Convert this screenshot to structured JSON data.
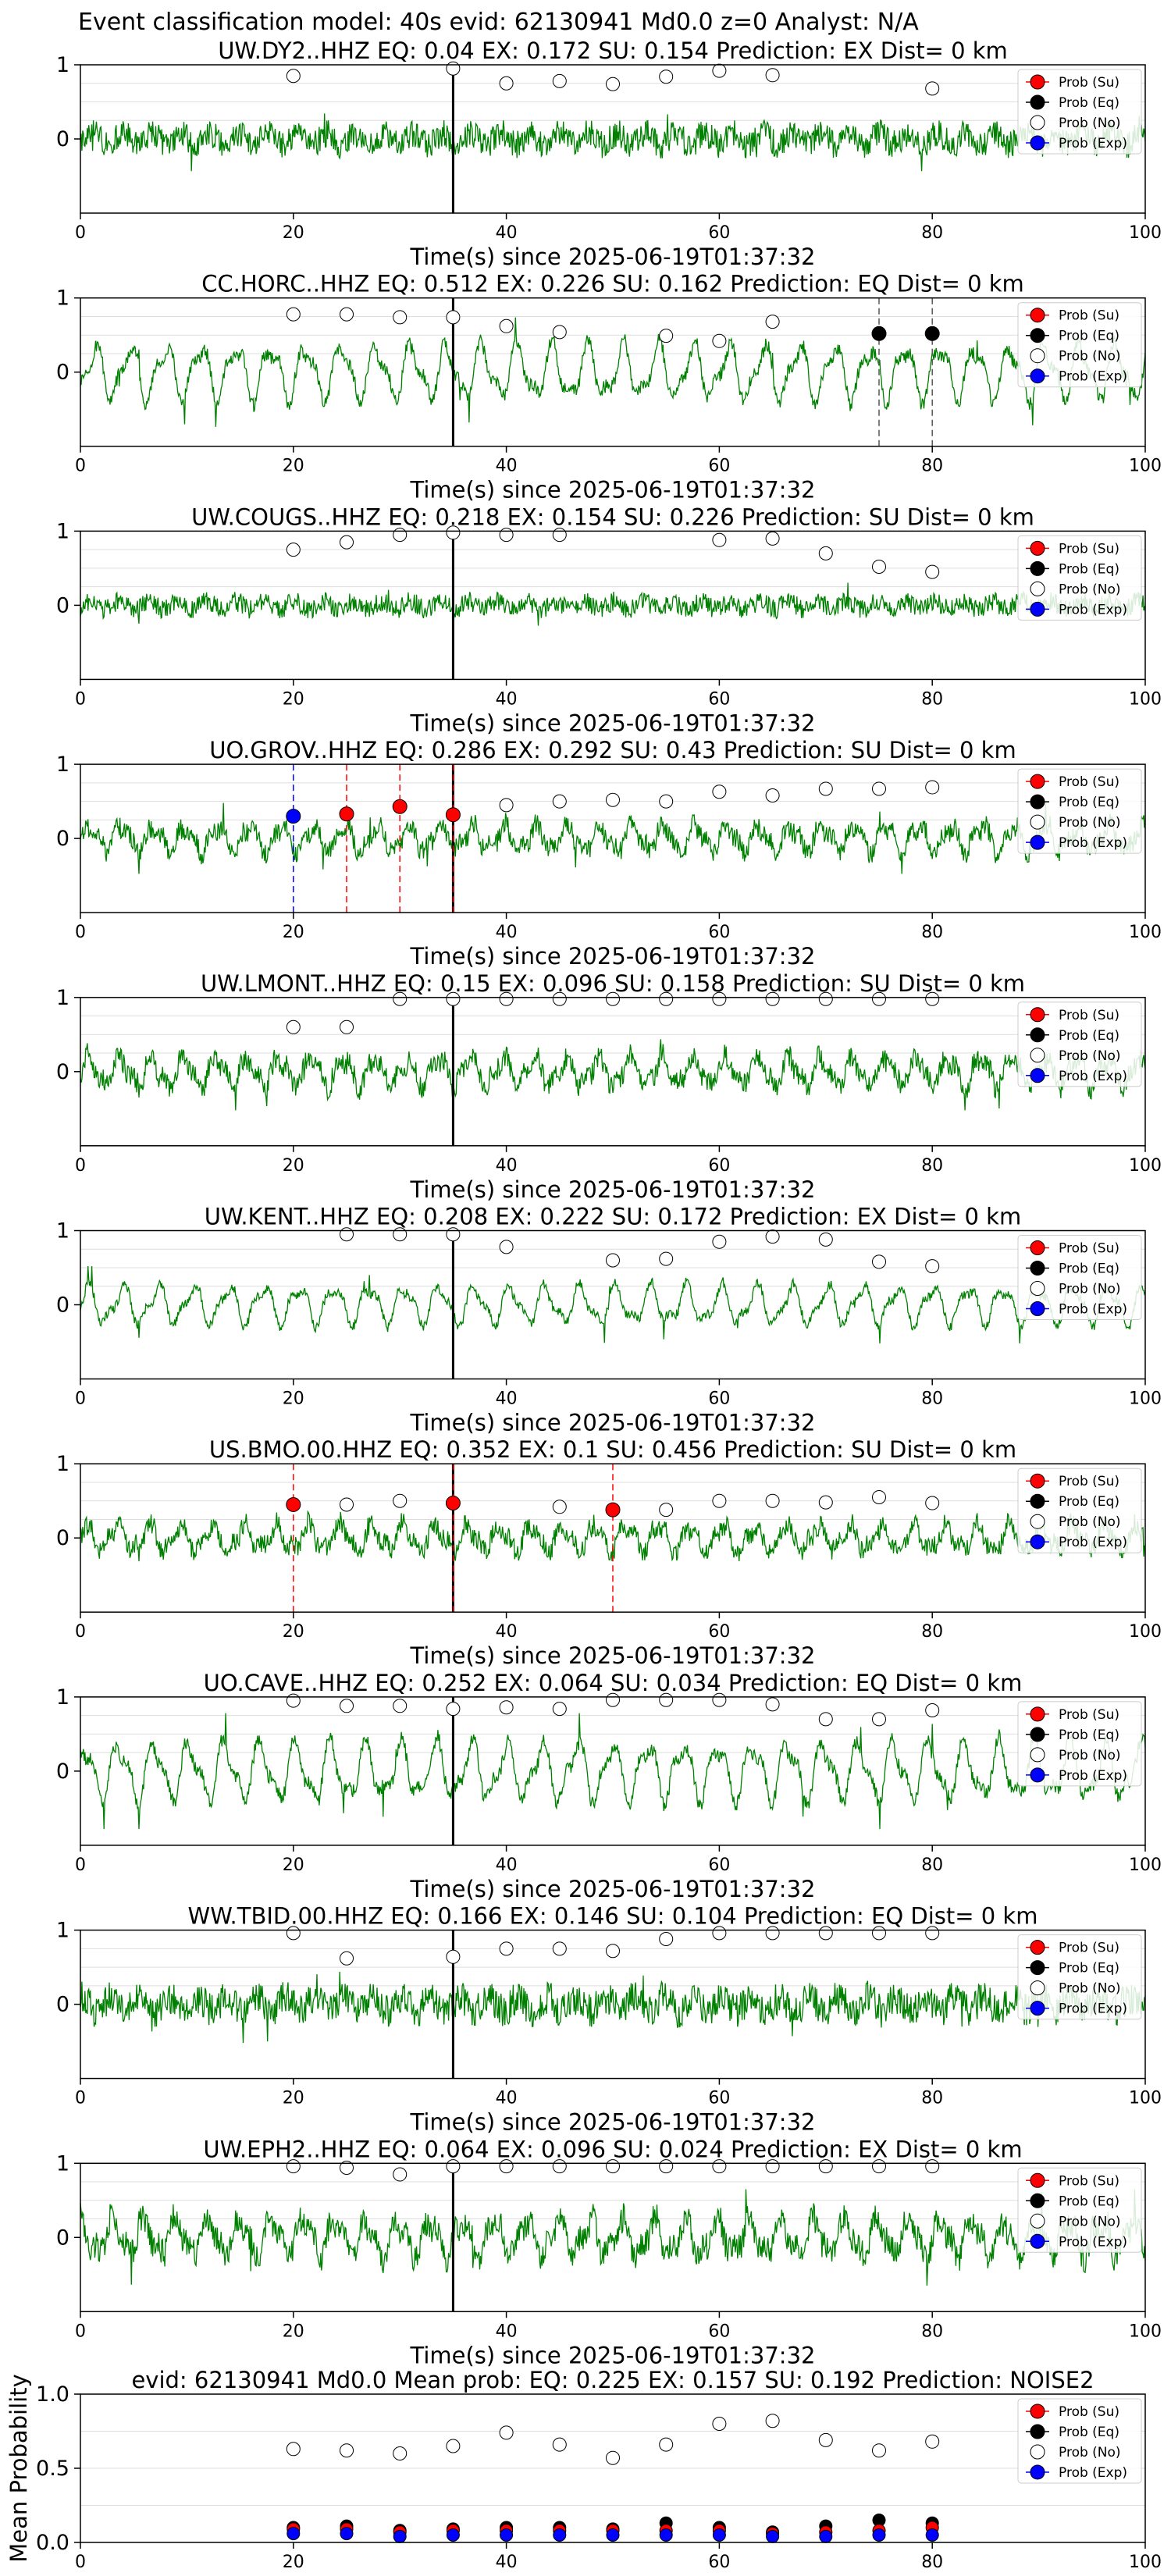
{
  "figure": {
    "title": "Event classification model: 40s evid: 62130941 Md0.0 z=0 Analyst: N/A",
    "colors": {
      "waveform": "#008000",
      "eq": "#000000",
      "su": "#ff0000",
      "exp": "#0000ff",
      "noise_face": "#ffffff",
      "frame": "#000000",
      "grid": "#dddddd",
      "legend_border": "#cccccc"
    }
  },
  "legend": [
    "Prob (Su)",
    "Prob (Eq)",
    "Prob (No)",
    "Prob (Exp)"
  ],
  "chart_data": [
    {
      "type": "line",
      "title": "UW.DY2..HHZ   EQ: 0.04   EX: 0.172  SU: 0.154   Prediction: EX    Dist= 0 km",
      "xlabel": "Time(s) since 2025-06-19T01:37:32",
      "xlim": [
        0,
        100
      ],
      "xticks": [
        "0",
        "20",
        "40",
        "60",
        "80",
        "100"
      ],
      "yticks": [
        "0",
        "1"
      ],
      "onset": 35,
      "style": "hf",
      "amp": 0.5,
      "noise_prob": [
        {
          "x": 20,
          "y": 0.85
        },
        {
          "x": 35,
          "y": 0.95
        },
        {
          "x": 40,
          "y": 0.75
        },
        {
          "x": 45,
          "y": 0.78
        },
        {
          "x": 50,
          "y": 0.74
        },
        {
          "x": 55,
          "y": 0.84
        },
        {
          "x": 60,
          "y": 0.92
        },
        {
          "x": 65,
          "y": 0.86
        },
        {
          "x": 80,
          "y": 0.68
        }
      ],
      "markers": []
    },
    {
      "type": "line",
      "title": "CC.HORC..HHZ   EQ: 0.512  EX: 0.226  SU: 0.162   Prediction: EQ    Dist= 0 km",
      "xlabel": "Time(s) since 2025-06-19T01:37:32",
      "xlim": [
        0,
        100
      ],
      "xticks": [
        "0",
        "20",
        "40",
        "60",
        "80",
        "100"
      ],
      "yticks": [
        "0",
        "1"
      ],
      "onset": 35,
      "style": "lf",
      "amp": 0.85,
      "noise_prob": [
        {
          "x": 20,
          "y": 0.78
        },
        {
          "x": 25,
          "y": 0.78
        },
        {
          "x": 30,
          "y": 0.74
        },
        {
          "x": 35,
          "y": 0.74
        },
        {
          "x": 40,
          "y": 0.62
        },
        {
          "x": 45,
          "y": 0.54
        },
        {
          "x": 55,
          "y": 0.49
        },
        {
          "x": 60,
          "y": 0.42
        },
        {
          "x": 65,
          "y": 0.68
        }
      ],
      "markers": [
        {
          "cls": "eq",
          "x": 75,
          "y": 0.52
        },
        {
          "cls": "eq",
          "x": 80,
          "y": 0.52
        }
      ]
    },
    {
      "type": "line",
      "title": "UW.COUGS..HHZ   EQ: 0.218  EX: 0.154  SU: 0.226   Prediction: SU    Dist= 0 km",
      "xlabel": "Time(s) since 2025-06-19T01:37:32",
      "xlim": [
        0,
        100
      ],
      "xticks": [
        "0",
        "20",
        "40",
        "60",
        "80",
        "100"
      ],
      "yticks": [
        "0",
        "1"
      ],
      "onset": 35,
      "style": "hf",
      "amp": 0.35,
      "noise_prob": [
        {
          "x": 20,
          "y": 0.75
        },
        {
          "x": 25,
          "y": 0.85
        },
        {
          "x": 30,
          "y": 0.95
        },
        {
          "x": 35,
          "y": 0.98
        },
        {
          "x": 40,
          "y": 0.95
        },
        {
          "x": 45,
          "y": 0.95
        },
        {
          "x": 60,
          "y": 0.88
        },
        {
          "x": 65,
          "y": 0.9
        },
        {
          "x": 70,
          "y": 0.7
        },
        {
          "x": 75,
          "y": 0.52
        },
        {
          "x": 80,
          "y": 0.45
        }
      ],
      "markers": []
    },
    {
      "type": "line",
      "title": "UO.GROV..HHZ   EQ: 0.286  EX: 0.292  SU: 0.43   Prediction: SU    Dist= 0 km",
      "xlabel": "Time(s) since 2025-06-19T01:37:32",
      "xlim": [
        0,
        100
      ],
      "xticks": [
        "0",
        "20",
        "40",
        "60",
        "80",
        "100"
      ],
      "yticks": [
        "0",
        "1"
      ],
      "onset": 35,
      "style": "mixed",
      "amp": 0.55,
      "noise_prob": [
        {
          "x": 40,
          "y": 0.45
        },
        {
          "x": 45,
          "y": 0.5
        },
        {
          "x": 50,
          "y": 0.52
        },
        {
          "x": 55,
          "y": 0.5
        },
        {
          "x": 60,
          "y": 0.63
        },
        {
          "x": 65,
          "y": 0.58
        },
        {
          "x": 70,
          "y": 0.67
        },
        {
          "x": 75,
          "y": 0.67
        },
        {
          "x": 80,
          "y": 0.69
        }
      ],
      "markers": [
        {
          "cls": "exp",
          "x": 20,
          "y": 0.3
        },
        {
          "cls": "su",
          "x": 25,
          "y": 0.33
        },
        {
          "cls": "su",
          "x": 30,
          "y": 0.43
        },
        {
          "cls": "su",
          "x": 35,
          "y": 0.32
        }
      ]
    },
    {
      "type": "line",
      "title": "UW.LMONT..HHZ   EQ: 0.15  EX: 0.096  SU: 0.158   Prediction: SU    Dist= 0 km",
      "xlabel": "Time(s) since 2025-06-19T01:37:32",
      "xlim": [
        0,
        100
      ],
      "xticks": [
        "0",
        "20",
        "40",
        "60",
        "80",
        "100"
      ],
      "yticks": [
        "0",
        "1"
      ],
      "onset": 35,
      "style": "mixed",
      "amp": 0.6,
      "noise_prob": [
        {
          "x": 20,
          "y": 0.6
        },
        {
          "x": 25,
          "y": 0.6
        },
        {
          "x": 30,
          "y": 0.98
        },
        {
          "x": 35,
          "y": 0.98
        },
        {
          "x": 40,
          "y": 0.98
        },
        {
          "x": 45,
          "y": 0.98
        },
        {
          "x": 50,
          "y": 0.98
        },
        {
          "x": 55,
          "y": 0.98
        },
        {
          "x": 60,
          "y": 0.98
        },
        {
          "x": 65,
          "y": 0.98
        },
        {
          "x": 70,
          "y": 0.98
        },
        {
          "x": 75,
          "y": 0.98
        },
        {
          "x": 80,
          "y": 0.98
        }
      ],
      "markers": []
    },
    {
      "type": "line",
      "title": "UW.KENT..HHZ   EQ: 0.208  EX: 0.222  SU: 0.172   Prediction: EX    Dist= 0 km",
      "xlabel": "Time(s) since 2025-06-19T01:37:32",
      "xlim": [
        0,
        100
      ],
      "xticks": [
        "0",
        "20",
        "40",
        "60",
        "80",
        "100"
      ],
      "yticks": [
        "0",
        "1"
      ],
      "onset": 35,
      "style": "lf",
      "amp": 0.6,
      "noise_prob": [
        {
          "x": 25,
          "y": 0.95
        },
        {
          "x": 30,
          "y": 0.95
        },
        {
          "x": 35,
          "y": 0.95
        },
        {
          "x": 40,
          "y": 0.78
        },
        {
          "x": 50,
          "y": 0.6
        },
        {
          "x": 55,
          "y": 0.62
        },
        {
          "x": 60,
          "y": 0.85
        },
        {
          "x": 65,
          "y": 0.92
        },
        {
          "x": 70,
          "y": 0.88
        },
        {
          "x": 75,
          "y": 0.58
        },
        {
          "x": 80,
          "y": 0.52
        }
      ],
      "markers": []
    },
    {
      "type": "line",
      "title": "US.BMO.00.HHZ   EQ: 0.352  EX: 0.1  SU: 0.456   Prediction: SU    Dist= 0 km",
      "xlabel": "Time(s) since 2025-06-19T01:37:32",
      "xlim": [
        0,
        100
      ],
      "xticks": [
        "0",
        "20",
        "40",
        "60",
        "80",
        "100"
      ],
      "yticks": [
        "0",
        "1"
      ],
      "onset": 35,
      "style": "mixed",
      "amp": 0.55,
      "noise_prob": [
        {
          "x": 25,
          "y": 0.45
        },
        {
          "x": 30,
          "y": 0.5
        },
        {
          "x": 45,
          "y": 0.42
        },
        {
          "x": 55,
          "y": 0.38
        },
        {
          "x": 60,
          "y": 0.5
        },
        {
          "x": 65,
          "y": 0.5
        },
        {
          "x": 70,
          "y": 0.48
        },
        {
          "x": 75,
          "y": 0.55
        },
        {
          "x": 80,
          "y": 0.47
        }
      ],
      "markers": [
        {
          "cls": "su",
          "x": 20,
          "y": 0.45
        },
        {
          "cls": "su",
          "x": 35,
          "y": 0.47
        },
        {
          "cls": "su",
          "x": 50,
          "y": 0.38
        }
      ]
    },
    {
      "type": "line",
      "title": "UO.CAVE..HHZ   EQ: 0.252  EX: 0.064  SU: 0.034   Prediction: EQ    Dist= 0 km",
      "xlabel": "Time(s) since 2025-06-19T01:37:32",
      "xlim": [
        0,
        100
      ],
      "xticks": [
        "0",
        "20",
        "40",
        "60",
        "80",
        "100"
      ],
      "yticks": [
        "0",
        "1"
      ],
      "onset": 35,
      "style": "lf",
      "amp": 0.9,
      "noise_prob": [
        {
          "x": 20,
          "y": 0.95
        },
        {
          "x": 25,
          "y": 0.88
        },
        {
          "x": 30,
          "y": 0.88
        },
        {
          "x": 35,
          "y": 0.84
        },
        {
          "x": 40,
          "y": 0.86
        },
        {
          "x": 45,
          "y": 0.84
        },
        {
          "x": 50,
          "y": 0.96
        },
        {
          "x": 55,
          "y": 0.96
        },
        {
          "x": 60,
          "y": 0.96
        },
        {
          "x": 65,
          "y": 0.9
        },
        {
          "x": 70,
          "y": 0.7
        },
        {
          "x": 75,
          "y": 0.7
        },
        {
          "x": 80,
          "y": 0.82
        }
      ],
      "markers": []
    },
    {
      "type": "line",
      "title": "WW.TBID.00.HHZ   EQ: 0.166  EX: 0.146  SU: 0.104   Prediction: EQ    Dist= 0 km",
      "xlabel": "Time(s) since 2025-06-19T01:37:32",
      "xlim": [
        0,
        100
      ],
      "xticks": [
        "0",
        "20",
        "40",
        "60",
        "80",
        "100"
      ],
      "yticks": [
        "0",
        "1"
      ],
      "onset": 35,
      "style": "hf",
      "amp": 0.6,
      "noise_prob": [
        {
          "x": 20,
          "y": 0.96
        },
        {
          "x": 25,
          "y": 0.62
        },
        {
          "x": 35,
          "y": 0.64
        },
        {
          "x": 40,
          "y": 0.75
        },
        {
          "x": 45,
          "y": 0.75
        },
        {
          "x": 50,
          "y": 0.72
        },
        {
          "x": 55,
          "y": 0.88
        },
        {
          "x": 60,
          "y": 0.96
        },
        {
          "x": 65,
          "y": 0.96
        },
        {
          "x": 70,
          "y": 0.96
        },
        {
          "x": 75,
          "y": 0.96
        },
        {
          "x": 80,
          "y": 0.96
        }
      ],
      "markers": []
    },
    {
      "type": "line",
      "title": "UW.EPH2..HHZ   EQ: 0.064  EX: 0.096  SU: 0.024   Prediction: EX    Dist= 0 km",
      "xlabel": "Time(s) since 2025-06-19T01:37:32",
      "xlim": [
        0,
        100
      ],
      "xticks": [
        "0",
        "20",
        "40",
        "60",
        "80",
        "100"
      ],
      "yticks": [
        "0",
        "1"
      ],
      "onset": 35,
      "style": "mixed",
      "amp": 0.75,
      "noise_prob": [
        {
          "x": 20,
          "y": 0.96
        },
        {
          "x": 25,
          "y": 0.94
        },
        {
          "x": 30,
          "y": 0.85
        },
        {
          "x": 35,
          "y": 0.96
        },
        {
          "x": 40,
          "y": 0.96
        },
        {
          "x": 45,
          "y": 0.96
        },
        {
          "x": 50,
          "y": 0.96
        },
        {
          "x": 55,
          "y": 0.96
        },
        {
          "x": 60,
          "y": 0.96
        },
        {
          "x": 65,
          "y": 0.96
        },
        {
          "x": 70,
          "y": 0.96
        },
        {
          "x": 75,
          "y": 0.96
        },
        {
          "x": 80,
          "y": 0.96
        }
      ],
      "markers": []
    },
    {
      "type": "scatter",
      "title": "evid: 62130941  Md0.0   Mean prob:   EQ: 0.225  EX: 0.157  SU: 0.192   Prediction: NOISE2",
      "xlabel": "",
      "ylabel": "Mean Probability",
      "xlim": [
        0,
        100
      ],
      "ylim": [
        0,
        1
      ],
      "xticks": [
        "0",
        "20",
        "40",
        "60",
        "80",
        "100"
      ],
      "yticks": [
        "0.0",
        "0.5",
        "1.0"
      ],
      "x": [
        20,
        25,
        30,
        35,
        40,
        45,
        50,
        55,
        60,
        65,
        70,
        75,
        80
      ],
      "series": [
        {
          "name": "Prob (No)",
          "cls": "no",
          "values": [
            0.63,
            0.62,
            0.6,
            0.65,
            0.74,
            0.66,
            0.57,
            0.66,
            0.8,
            0.82,
            0.69,
            0.62,
            0.68
          ]
        },
        {
          "name": "Prob (Eq)",
          "cls": "eq",
          "values": [
            0.1,
            0.11,
            0.08,
            0.09,
            0.1,
            0.1,
            0.09,
            0.13,
            0.1,
            0.07,
            0.11,
            0.15,
            0.13
          ]
        },
        {
          "name": "Prob (Su)",
          "cls": "su",
          "values": [
            0.09,
            0.09,
            0.07,
            0.08,
            0.08,
            0.08,
            0.08,
            0.08,
            0.08,
            0.06,
            0.07,
            0.08,
            0.1
          ]
        },
        {
          "name": "Prob (Exp)",
          "cls": "exp",
          "values": [
            0.06,
            0.06,
            0.04,
            0.05,
            0.05,
            0.05,
            0.05,
            0.05,
            0.05,
            0.04,
            0.04,
            0.05,
            0.05
          ]
        }
      ]
    }
  ]
}
